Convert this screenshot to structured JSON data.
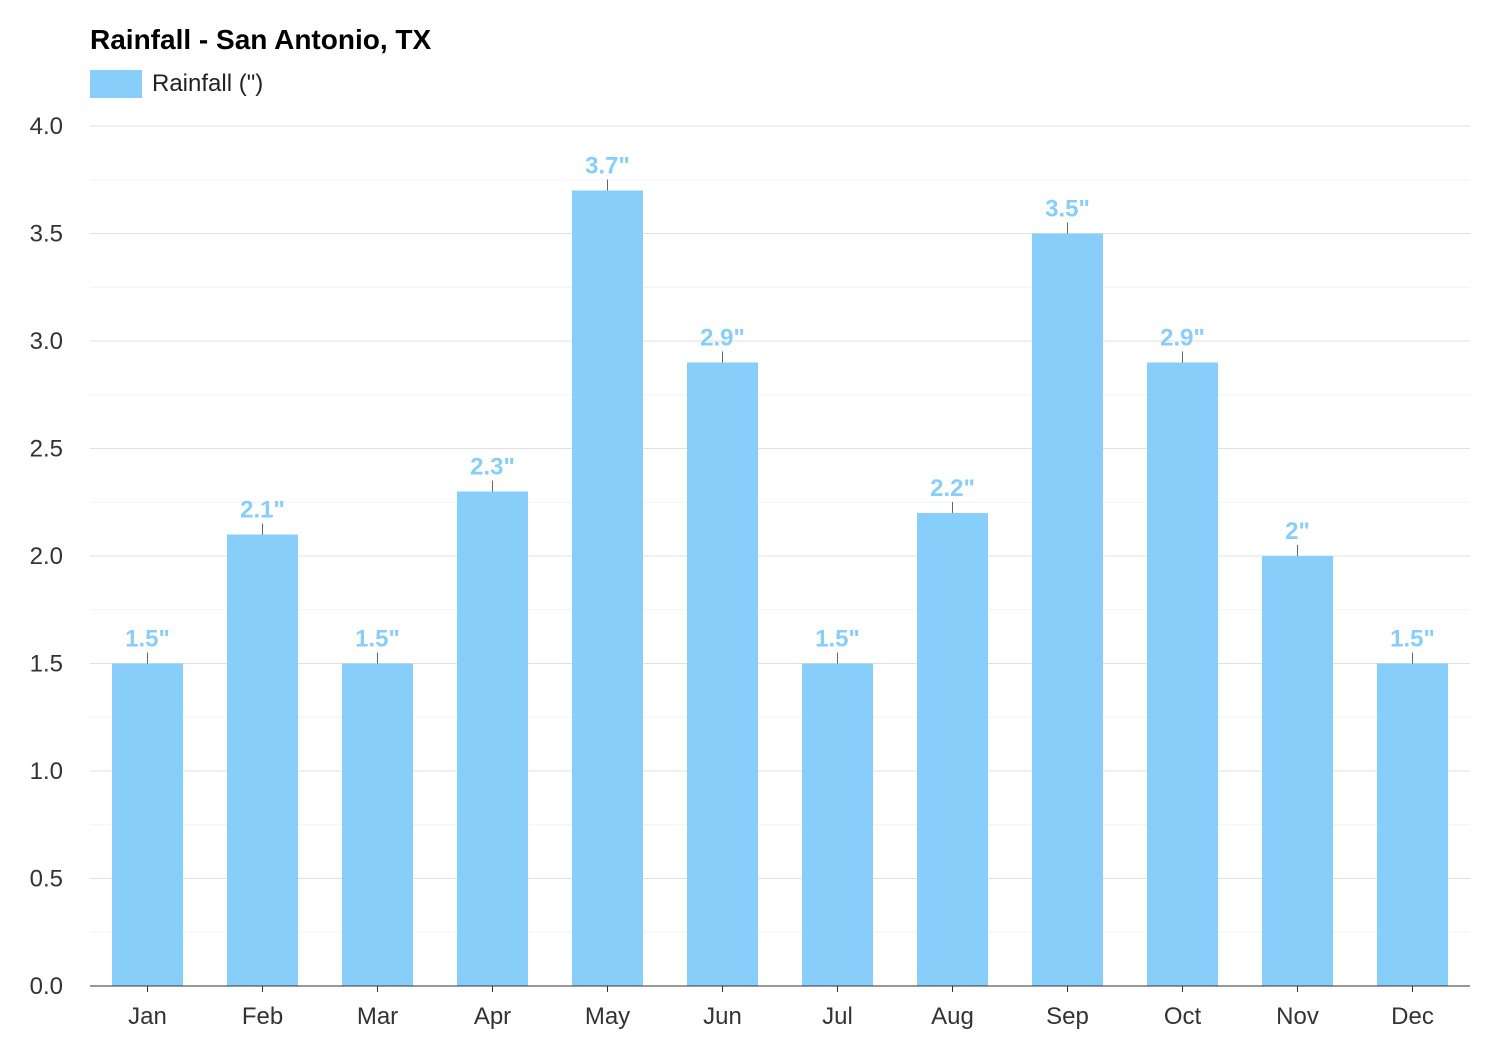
{
  "chart_data": {
    "type": "bar",
    "title": "Rainfall - San Antonio, TX",
    "categories": [
      "Jan",
      "Feb",
      "Mar",
      "Apr",
      "May",
      "Jun",
      "Jul",
      "Aug",
      "Sep",
      "Oct",
      "Nov",
      "Dec"
    ],
    "series": [
      {
        "name": "Rainfall (\")",
        "values": [
          1.5,
          2.1,
          1.5,
          2.3,
          3.7,
          2.9,
          1.5,
          2.2,
          3.5,
          2.9,
          2.0,
          1.5
        ],
        "labels": [
          "1.5\"",
          "2.1\"",
          "1.5\"",
          "2.3\"",
          "3.7\"",
          "2.9\"",
          "1.5\"",
          "2.2\"",
          "3.5\"",
          "2.9\"",
          "2\"",
          "1.5\""
        ]
      }
    ],
    "ylim": [
      0,
      4.0
    ],
    "yticks": [
      "0.0",
      "0.5",
      "1.0",
      "1.5",
      "2.0",
      "2.5",
      "3.0",
      "3.5",
      "4.0"
    ],
    "xlabel": "",
    "ylabel": "",
    "grid": true,
    "legend_position": "top-left",
    "colors": {
      "bar": "#87cefa",
      "label": "#87cefa",
      "grid_major": "#e0e0e0",
      "grid_minor": "#f2f2f2",
      "axis": "#333333"
    }
  }
}
